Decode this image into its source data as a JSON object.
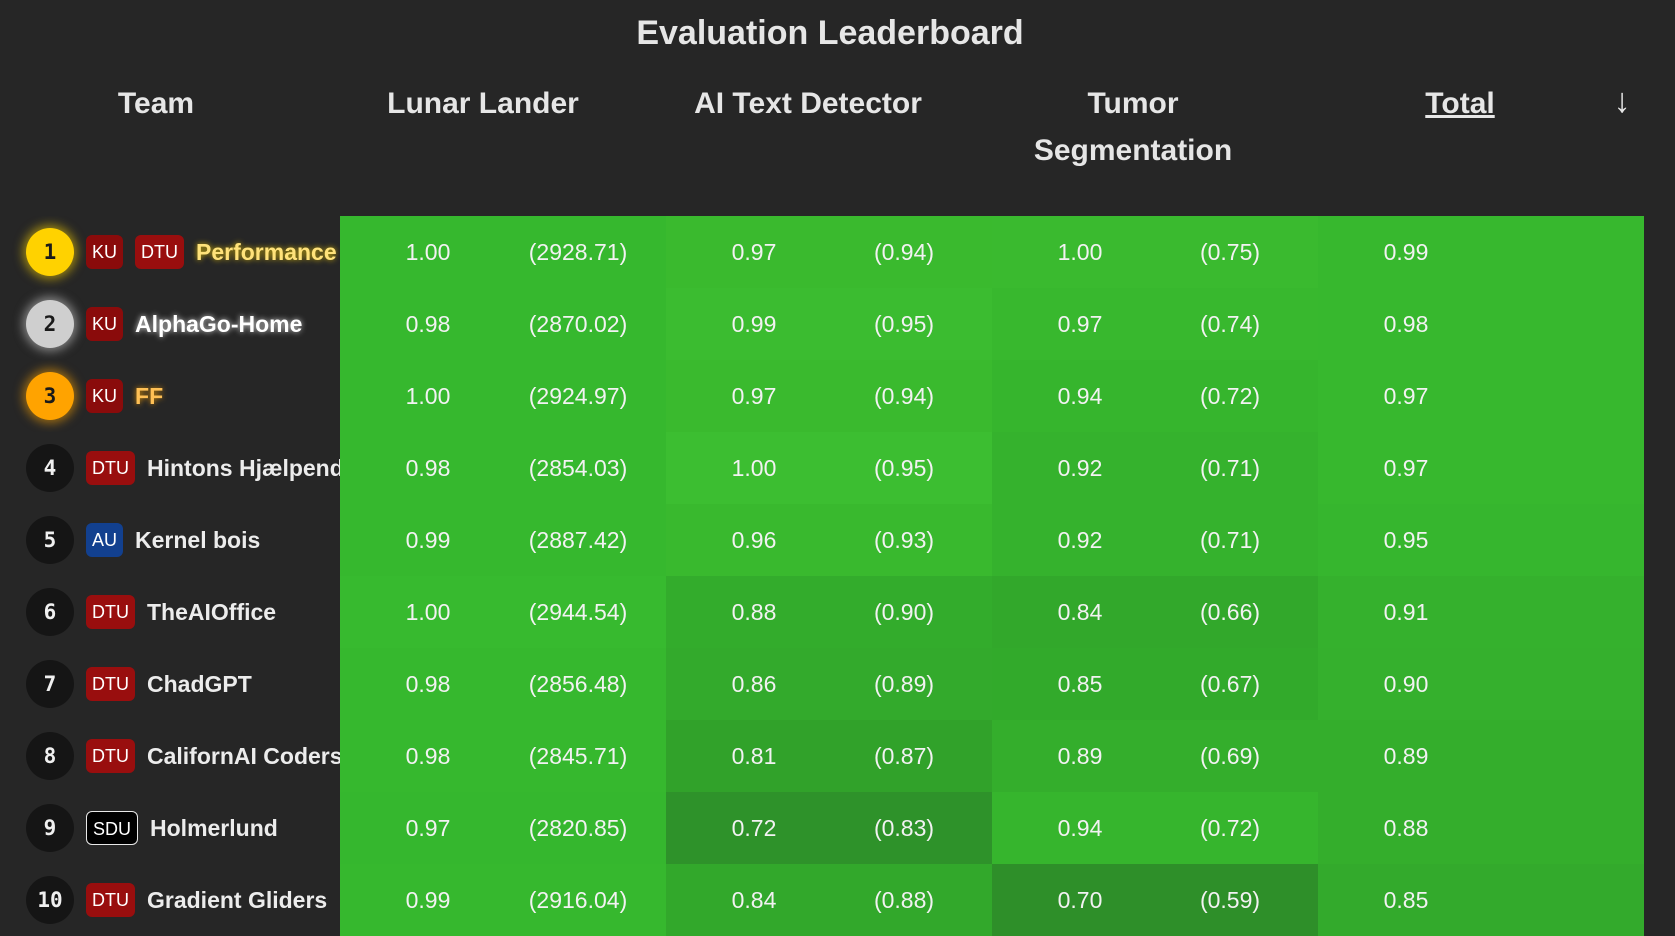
{
  "title": "Evaluation Leaderboard",
  "headers": {
    "team": "Team",
    "lunar": "Lunar Lander",
    "ai": "AI Text Detector",
    "tumor": "Tumor Segmentation",
    "total": "Total",
    "sort_arrow": "↓"
  },
  "rows": [
    {
      "rank": "1",
      "tier": "gold",
      "badges": [
        "KU",
        "DTU"
      ],
      "team": "Performance",
      "lunar": "1.00",
      "lunar_raw": "(2928.71)",
      "ai": "0.97",
      "ai_raw": "(0.94)",
      "tumor": "1.00",
      "tumor_raw": "(0.75)",
      "total": "0.99",
      "colors": {
        "lunar": "#36b82e",
        "ai": "#3aba2e",
        "tumor": "#3aba2f",
        "total": "#37b82e"
      }
    },
    {
      "rank": "2",
      "tier": "silver",
      "badges": [
        "KU"
      ],
      "team": "AlphaGo-Home",
      "lunar": "0.98",
      "lunar_raw": "(2870.02)",
      "ai": "0.99",
      "ai_raw": "(0.95)",
      "tumor": "0.97",
      "tumor_raw": "(0.74)",
      "total": "0.98",
      "colors": {
        "lunar": "#36b82e",
        "ai": "#3bbc30",
        "tumor": "#38b82e",
        "total": "#37b82e"
      }
    },
    {
      "rank": "3",
      "tier": "bronze",
      "badges": [
        "KU"
      ],
      "team": "FF",
      "lunar": "1.00",
      "lunar_raw": "(2924.97)",
      "ai": "0.97",
      "ai_raw": "(0.94)",
      "tumor": "0.94",
      "tumor_raw": "(0.72)",
      "total": "0.97",
      "colors": {
        "lunar": "#36b82e",
        "ai": "#3aba2e",
        "tumor": "#36b52d",
        "total": "#37b82e"
      }
    },
    {
      "rank": "4",
      "tier": "plain",
      "badges": [
        "DTU"
      ],
      "team": "Hintons Hjælpende",
      "lunar": "0.98",
      "lunar_raw": "(2854.03)",
      "ai": "1.00",
      "ai_raw": "(0.95)",
      "tumor": "0.92",
      "tumor_raw": "(0.71)",
      "total": "0.97",
      "colors": {
        "lunar": "#36b82e",
        "ai": "#3cbe31",
        "tumor": "#35b22d",
        "total": "#37b82e"
      }
    },
    {
      "rank": "5",
      "tier": "plain",
      "badges": [
        "AU"
      ],
      "team": "Kernel bois",
      "lunar": "0.99",
      "lunar_raw": "(2887.42)",
      "ai": "0.96",
      "ai_raw": "(0.93)",
      "tumor": "0.92",
      "tumor_raw": "(0.71)",
      "total": "0.95",
      "colors": {
        "lunar": "#36b82e",
        "ai": "#39b92e",
        "tumor": "#35b22d",
        "total": "#36b62e"
      }
    },
    {
      "rank": "6",
      "tier": "plain",
      "badges": [
        "DTU"
      ],
      "team": "TheAIOffice",
      "lunar": "1.00",
      "lunar_raw": "(2944.54)",
      "ai": "0.88",
      "ai_raw": "(0.90)",
      "tumor": "0.84",
      "tumor_raw": "(0.66)",
      "total": "0.91",
      "colors": {
        "lunar": "#37ba2f",
        "ai": "#33ac2c",
        "tumor": "#32a82b",
        "total": "#35b12d"
      }
    },
    {
      "rank": "7",
      "tier": "plain",
      "badges": [
        "DTU"
      ],
      "team": "ChadGPT",
      "lunar": "0.98",
      "lunar_raw": "(2856.48)",
      "ai": "0.86",
      "ai_raw": "(0.89)",
      "tumor": "0.85",
      "tumor_raw": "(0.67)",
      "total": "0.90",
      "colors": {
        "lunar": "#36b82e",
        "ai": "#33aa2c",
        "tumor": "#32aa2b",
        "total": "#35b02d"
      }
    },
    {
      "rank": "8",
      "tier": "plain",
      "badges": [
        "DTU"
      ],
      "team": "CalifornAI Coders",
      "lunar": "0.98",
      "lunar_raw": "(2845.71)",
      "ai": "0.81",
      "ai_raw": "(0.87)",
      "tumor": "0.89",
      "tumor_raw": "(0.69)",
      "total": "0.89",
      "colors": {
        "lunar": "#36b82e",
        "ai": "#31a22a",
        "tumor": "#34ae2c",
        "total": "#34ae2c"
      }
    },
    {
      "rank": "9",
      "tier": "plain",
      "badges": [
        "SDU"
      ],
      "team": "Holmerlund",
      "lunar": "0.97",
      "lunar_raw": "(2820.85)",
      "ai": "0.72",
      "ai_raw": "(0.83)",
      "tumor": "0.94",
      "tumor_raw": "(0.72)",
      "total": "0.88",
      "colors": {
        "lunar": "#35b72e",
        "ai": "#2e922a",
        "tumor": "#36b52d",
        "total": "#34ae2c"
      }
    },
    {
      "rank": "10",
      "tier": "plain",
      "badges": [
        "DTU"
      ],
      "team": "Gradient Gliders",
      "lunar": "0.99",
      "lunar_raw": "(2916.04)",
      "ai": "0.84",
      "ai_raw": "(0.88)",
      "tumor": "0.70",
      "tumor_raw": "(0.59)",
      "total": "0.85",
      "colors": {
        "lunar": "#36b82e",
        "ai": "#32a82b",
        "tumor": "#2e8f29",
        "total": "#33aa2c"
      }
    }
  ]
}
